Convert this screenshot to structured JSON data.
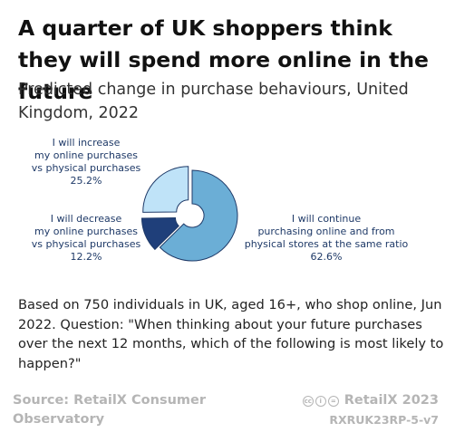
{
  "header": {
    "title": "A quarter of UK shoppers think they will spend more online in the future",
    "subtitle": "Predicted change in purchase behaviours, United Kingdom, 2022"
  },
  "chart_data": {
    "type": "pie",
    "style": "donut, exploded segments",
    "start_direction": "clockwise from top",
    "slices": [
      {
        "label": [
          "I will continue",
          "purchasing online and from",
          "physical stores at the same ratio",
          "62.6%"
        ],
        "value": 62.6,
        "color": "#6baed6"
      },
      {
        "label": [
          "I will decrease",
          "my online purchases",
          "vs physical purchases",
          "12.2%"
        ],
        "value": 12.2,
        "color": "#1f3f7a"
      },
      {
        "label": [
          "I will increase",
          "my online purchases",
          "vs physical purchases",
          "25.2%"
        ],
        "value": 25.2,
        "color": "#bfe3f8"
      }
    ]
  },
  "note": "Based on 750 individuals in UK, aged 16+, who shop online, Jun 2022. Question: \"When thinking about your future purchases over the next 12 months, which of the following is most likely to happen?\"",
  "footer": {
    "source": "Source: RetailX Consumer Observatory",
    "brand": "RetailX 2023",
    "code": "RXRUK23RP-5-v7",
    "license_icons": [
      "cc-icon",
      "by-icon",
      "equals-icon"
    ]
  }
}
